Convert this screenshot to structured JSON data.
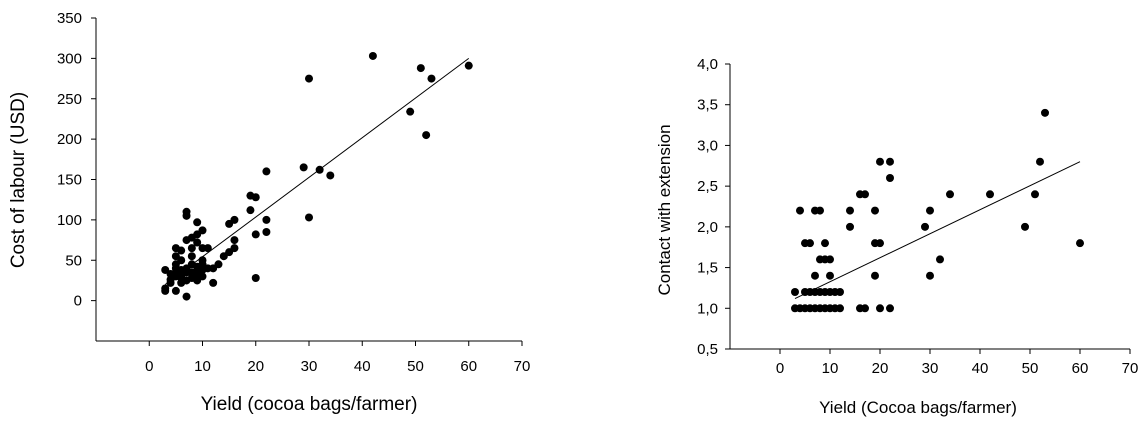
{
  "chart_data": [
    {
      "type": "scatter",
      "xlabel": "Yield (cocoa bags/farmer)",
      "ylabel": "Cost of labour (USD)",
      "xlim": [
        -10,
        70
      ],
      "ylim": [
        -50,
        350
      ],
      "xticks": [
        "0",
        "10",
        "20",
        "30",
        "40",
        "50",
        "60",
        "70"
      ],
      "yticks": [
        "0",
        "50",
        "100",
        "150",
        "200",
        "250",
        "300",
        "350"
      ],
      "grid": false,
      "trendline": [
        [
          3,
          20
        ],
        [
          60,
          300
        ]
      ],
      "points": [
        [
          3,
          12
        ],
        [
          3,
          15
        ],
        [
          3,
          38
        ],
        [
          4,
          33
        ],
        [
          4,
          26
        ],
        [
          4,
          22
        ],
        [
          5,
          40
        ],
        [
          5,
          35
        ],
        [
          5,
          30
        ],
        [
          5,
          12
        ],
        [
          5,
          65
        ],
        [
          5,
          55
        ],
        [
          5,
          45
        ],
        [
          6,
          50
        ],
        [
          6,
          28
        ],
        [
          6,
          22
        ],
        [
          6,
          62
        ],
        [
          6,
          38
        ],
        [
          6,
          30
        ],
        [
          7,
          75
        ],
        [
          7,
          105
        ],
        [
          7,
          110
        ],
        [
          7,
          40
        ],
        [
          7,
          35
        ],
        [
          7,
          25
        ],
        [
          7,
          5
        ],
        [
          8,
          78
        ],
        [
          8,
          65
        ],
        [
          8,
          55
        ],
        [
          8,
          45
        ],
        [
          8,
          35
        ],
        [
          8,
          28
        ],
        [
          9,
          97
        ],
        [
          9,
          82
        ],
        [
          9,
          72
        ],
        [
          9,
          42
        ],
        [
          9,
          36
        ],
        [
          9,
          30
        ],
        [
          9,
          25
        ],
        [
          10,
          87
        ],
        [
          10,
          65
        ],
        [
          10,
          50
        ],
        [
          10,
          45
        ],
        [
          10,
          38
        ],
        [
          10,
          30
        ],
        [
          11,
          65
        ],
        [
          11,
          40
        ],
        [
          12,
          40
        ],
        [
          12,
          22
        ],
        [
          13,
          45
        ],
        [
          14,
          55
        ],
        [
          15,
          60
        ],
        [
          15,
          95
        ],
        [
          16,
          65
        ],
        [
          16,
          75
        ],
        [
          16,
          100
        ],
        [
          19,
          130
        ],
        [
          19,
          112
        ],
        [
          20,
          128
        ],
        [
          20,
          82
        ],
        [
          20,
          28
        ],
        [
          22,
          160
        ],
        [
          22,
          100
        ],
        [
          22,
          85
        ],
        [
          29,
          165
        ],
        [
          30,
          103
        ],
        [
          30,
          275
        ],
        [
          32,
          162
        ],
        [
          34,
          155
        ],
        [
          42,
          303
        ],
        [
          49,
          234
        ],
        [
          51,
          288
        ],
        [
          52,
          205
        ],
        [
          53,
          275
        ],
        [
          60,
          291
        ]
      ]
    },
    {
      "type": "scatter",
      "xlabel": "Yield (Cocoa bags/farmer)",
      "ylabel": "Contact with extension",
      "xlim": [
        -10,
        70
      ],
      "ylim": [
        0.5,
        4.0
      ],
      "xticks": [
        "0",
        "10",
        "20",
        "30",
        "40",
        "50",
        "60",
        "70"
      ],
      "yticks": [
        "0,5",
        "1,0",
        "1,5",
        "2,0",
        "2,5",
        "3,0",
        "3,5",
        "4,0"
      ],
      "grid": false,
      "trendline": [
        [
          3,
          1.12
        ],
        [
          60,
          2.8
        ]
      ],
      "points": [
        [
          3,
          1.0
        ],
        [
          3,
          1.2
        ],
        [
          4,
          1.0
        ],
        [
          4,
          2.2
        ],
        [
          5,
          1.0
        ],
        [
          5,
          1.2
        ],
        [
          5,
          1.8
        ],
        [
          6,
          1.0
        ],
        [
          6,
          1.2
        ],
        [
          6,
          1.8
        ],
        [
          7,
          1.0
        ],
        [
          7,
          1.2
        ],
        [
          7,
          1.4
        ],
        [
          7,
          2.2
        ],
        [
          8,
          1.0
        ],
        [
          8,
          1.2
        ],
        [
          8,
          1.6
        ],
        [
          8,
          2.2
        ],
        [
          9,
          1.0
        ],
        [
          9,
          1.2
        ],
        [
          9,
          1.8
        ],
        [
          9,
          1.6
        ],
        [
          10,
          1.0
        ],
        [
          10,
          1.2
        ],
        [
          10,
          1.4
        ],
        [
          10,
          1.6
        ],
        [
          11,
          1.0
        ],
        [
          11,
          1.2
        ],
        [
          12,
          1.0
        ],
        [
          12,
          1.2
        ],
        [
          14,
          2.0
        ],
        [
          14,
          2.2
        ],
        [
          16,
          1.0
        ],
        [
          16,
          2.4
        ],
        [
          17,
          1.0
        ],
        [
          17,
          2.4
        ],
        [
          19,
          1.4
        ],
        [
          19,
          1.8
        ],
        [
          19,
          2.2
        ],
        [
          20,
          1.0
        ],
        [
          20,
          1.8
        ],
        [
          20,
          2.8
        ],
        [
          22,
          1.0
        ],
        [
          22,
          2.6
        ],
        [
          22,
          2.8
        ],
        [
          29,
          2.0
        ],
        [
          30,
          1.4
        ],
        [
          30,
          2.2
        ],
        [
          32,
          1.6
        ],
        [
          34,
          2.4
        ],
        [
          42,
          2.4
        ],
        [
          49,
          2.0
        ],
        [
          51,
          2.4
        ],
        [
          52,
          2.8
        ],
        [
          53,
          3.4
        ],
        [
          60,
          1.8
        ]
      ]
    }
  ]
}
